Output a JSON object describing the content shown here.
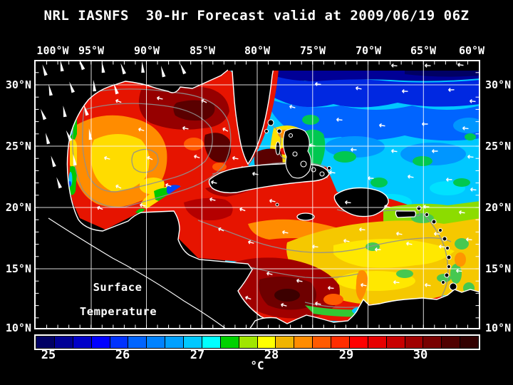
{
  "title": "NRL IASNFS  30-Hr Forecast valid at 2009/06/19 06Z",
  "axes": {
    "top_labels": [
      "100°W",
      "95°W",
      "90°W",
      "85°W",
      "80°W",
      "75°W",
      "70°W",
      "65°W",
      "60°W"
    ],
    "left_labels": [
      "30°N",
      "25°N",
      "20°N",
      "15°N",
      "10°N"
    ],
    "right_labels": [
      "30°N",
      "25°N",
      "20°N",
      "15°N",
      "10°N"
    ]
  },
  "map": {
    "annotation_line1": "Surface",
    "annotation_line2": "Temperature"
  },
  "colorbar": {
    "tick_labels": [
      "25",
      "26",
      "27",
      "28",
      "29",
      "30"
    ],
    "unit": "°C",
    "cell_colors": [
      "#000064",
      "#000096",
      "#0000C8",
      "#0000FF",
      "#0032FF",
      "#0064FF",
      "#0082FF",
      "#00A0FF",
      "#00C8FF",
      "#00FFFF",
      "#00D200",
      "#A0E600",
      "#FFFF00",
      "#F0B400",
      "#FF8C00",
      "#FF5A00",
      "#FF2D00",
      "#FF0000",
      "#E60000",
      "#C80000",
      "#A00000",
      "#780000",
      "#500000",
      "#320000"
    ]
  },
  "colors": {
    "background": "#000000",
    "text": "#FFFFFF",
    "grid": "#FFFFFF",
    "coastline": "#FFFFFF",
    "contour": "#909090",
    "frame": "#FFFFFF"
  }
}
